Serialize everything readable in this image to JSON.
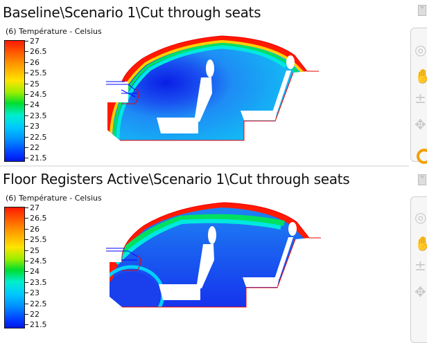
{
  "views": [
    {
      "title": "Baseline\\Scenario 1\\Cut through seats",
      "legend": {
        "label": "(6) Température - Celsius",
        "ticks": [
          "27",
          "26.5",
          "26",
          "25.5",
          "25",
          "24.5",
          "24",
          "23.5",
          "23",
          "22.5",
          "22",
          "21.5"
        ]
      }
    },
    {
      "title": "Floor Registers Active\\Scenario 1\\Cut through seats",
      "legend": {
        "label": "(6) Température - Celsius",
        "ticks": [
          "27",
          "26.5",
          "26",
          "25.5",
          "25",
          "24.5",
          "24",
          "23.5",
          "23",
          "22.5",
          "22",
          "21.5"
        ]
      }
    }
  ],
  "colorscale": {
    "min": 21.5,
    "max": 27,
    "colors": [
      "#0018e0",
      "#0090ff",
      "#00eecf",
      "#00dd30",
      "#ffe400",
      "#ff9000",
      "#ff1a00"
    ]
  },
  "toolbar": {
    "icons": [
      "view-cube-icon",
      "zoom-icon",
      "pan-hand-icon",
      "zoom-slider-icon",
      "orbit-icon",
      "settings-gear-icon"
    ]
  }
}
